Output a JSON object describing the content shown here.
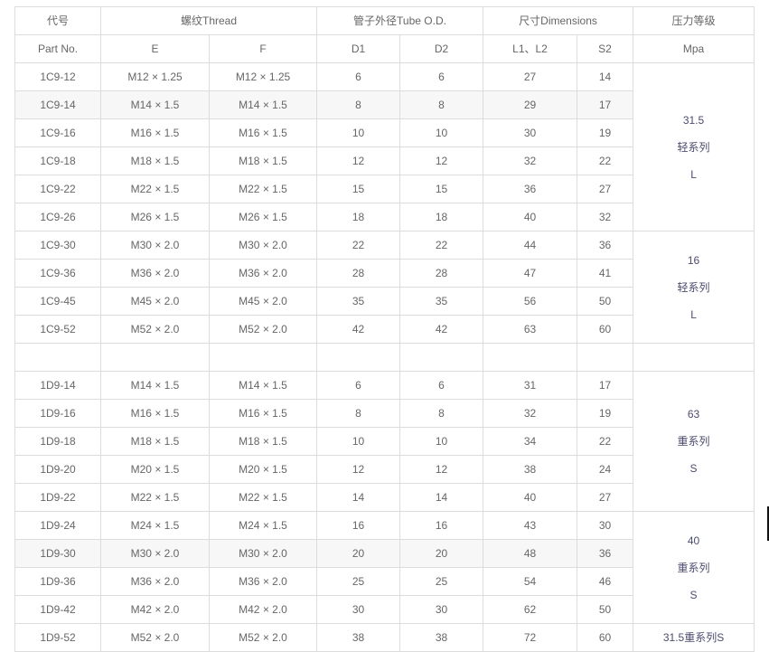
{
  "header": {
    "part_no_cn": "代号",
    "part_no_en": "Part No.",
    "thread": "螺纹Thread",
    "tube_od": "管子外径Tube O.D.",
    "dimensions": "尺寸Dimensions",
    "pressure_cn": "压力等级",
    "pressure_unit": "Mpa",
    "sub": [
      "E",
      "F",
      "D1",
      "D2",
      "L1、L2",
      "S2"
    ]
  },
  "rows": [
    {
      "part": "1C9-12",
      "e": "M12 × 1.25",
      "f": "M12 × 1.25",
      "d1": "6",
      "d2": "6",
      "l": "27",
      "s2": "14",
      "striped": false
    },
    {
      "part": "1C9-14",
      "e": "M14 × 1.5",
      "f": "M14 × 1.5",
      "d1": "8",
      "d2": "8",
      "l": "29",
      "s2": "17",
      "striped": true
    },
    {
      "part": "1C9-16",
      "e": "M16 × 1.5",
      "f": "M16 × 1.5",
      "d1": "10",
      "d2": "10",
      "l": "30",
      "s2": "19",
      "striped": false
    },
    {
      "part": "1C9-18",
      "e": "M18 × 1.5",
      "f": "M18 × 1.5",
      "d1": "12",
      "d2": "12",
      "l": "32",
      "s2": "22",
      "striped": false
    },
    {
      "part": "1C9-22",
      "e": "M22 × 1.5",
      "f": "M22 × 1.5",
      "d1": "15",
      "d2": "15",
      "l": "36",
      "s2": "27",
      "striped": false
    },
    {
      "part": "1C9-26",
      "e": "M26 × 1.5",
      "f": "M26 × 1.5",
      "d1": "18",
      "d2": "18",
      "l": "40",
      "s2": "32",
      "striped": false
    },
    {
      "part": "1C9-30",
      "e": "M30 × 2.0",
      "f": "M30 × 2.0",
      "d1": "22",
      "d2": "22",
      "l": "44",
      "s2": "36",
      "striped": false
    },
    {
      "part": "1C9-36",
      "e": "M36 × 2.0",
      "f": "M36 × 2.0",
      "d1": "28",
      "d2": "28",
      "l": "47",
      "s2": "41",
      "striped": false
    },
    {
      "part": "1C9-45",
      "e": "M45 × 2.0",
      "f": "M45 × 2.0",
      "d1": "35",
      "d2": "35",
      "l": "56",
      "s2": "50",
      "striped": false
    },
    {
      "part": "1C9-52",
      "e": "M52 × 2.0",
      "f": "M52 × 2.0",
      "d1": "42",
      "d2": "42",
      "l": "63",
      "s2": "60",
      "striped": false
    },
    {
      "part": "",
      "e": "",
      "f": "",
      "d1": "",
      "d2": "",
      "l": "",
      "s2": "",
      "striped": false
    },
    {
      "part": "1D9-14",
      "e": "M14 × 1.5",
      "f": "M14 × 1.5",
      "d1": "6",
      "d2": "6",
      "l": "31",
      "s2": "17",
      "striped": false
    },
    {
      "part": "1D9-16",
      "e": "M16 × 1.5",
      "f": "M16 × 1.5",
      "d1": "8",
      "d2": "8",
      "l": "32",
      "s2": "19",
      "striped": false
    },
    {
      "part": "1D9-18",
      "e": "M18 × 1.5",
      "f": "M18 × 1.5",
      "d1": "10",
      "d2": "10",
      "l": "34",
      "s2": "22",
      "striped": false
    },
    {
      "part": "1D9-20",
      "e": "M20 × 1.5",
      "f": "M20 × 1.5",
      "d1": "12",
      "d2": "12",
      "l": "38",
      "s2": "24",
      "striped": false
    },
    {
      "part": "1D9-22",
      "e": "M22 × 1.5",
      "f": "M22 × 1.5",
      "d1": "14",
      "d2": "14",
      "l": "40",
      "s2": "27",
      "striped": false
    },
    {
      "part": "1D9-24",
      "e": "M24 × 1.5",
      "f": "M24 × 1.5",
      "d1": "16",
      "d2": "16",
      "l": "43",
      "s2": "30",
      "striped": false
    },
    {
      "part": "1D9-30",
      "e": "M30 × 2.0",
      "f": "M30 × 2.0",
      "d1": "20",
      "d2": "20",
      "l": "48",
      "s2": "36",
      "striped": true
    },
    {
      "part": "1D9-36",
      "e": "M36 × 2.0",
      "f": "M36 × 2.0",
      "d1": "25",
      "d2": "25",
      "l": "54",
      "s2": "46",
      "striped": false
    },
    {
      "part": "1D9-42",
      "e": "M42 × 2.0",
      "f": "M42 × 2.0",
      "d1": "30",
      "d2": "30",
      "l": "62",
      "s2": "50",
      "striped": false
    },
    {
      "part": "1D9-52",
      "e": "M52 × 2.0",
      "f": "M52 × 2.0",
      "d1": "38",
      "d2": "38",
      "l": "72",
      "s2": "60",
      "striped": false
    }
  ],
  "pressure_groups": [
    {
      "start": 0,
      "span": 6,
      "lines": [
        "31.5",
        "轻系列",
        "L"
      ]
    },
    {
      "start": 6,
      "span": 4,
      "lines": [
        "16",
        "轻系列",
        "L"
      ]
    },
    {
      "start": 10,
      "span": 1,
      "lines": []
    },
    {
      "start": 11,
      "span": 5,
      "lines": [
        "63",
        "重系列",
        "S"
      ]
    },
    {
      "start": 16,
      "span": 4,
      "lines": [
        "40",
        "重系列",
        "S"
      ]
    },
    {
      "start": 20,
      "span": 1,
      "lines": [
        "31.5重系列S"
      ]
    }
  ]
}
